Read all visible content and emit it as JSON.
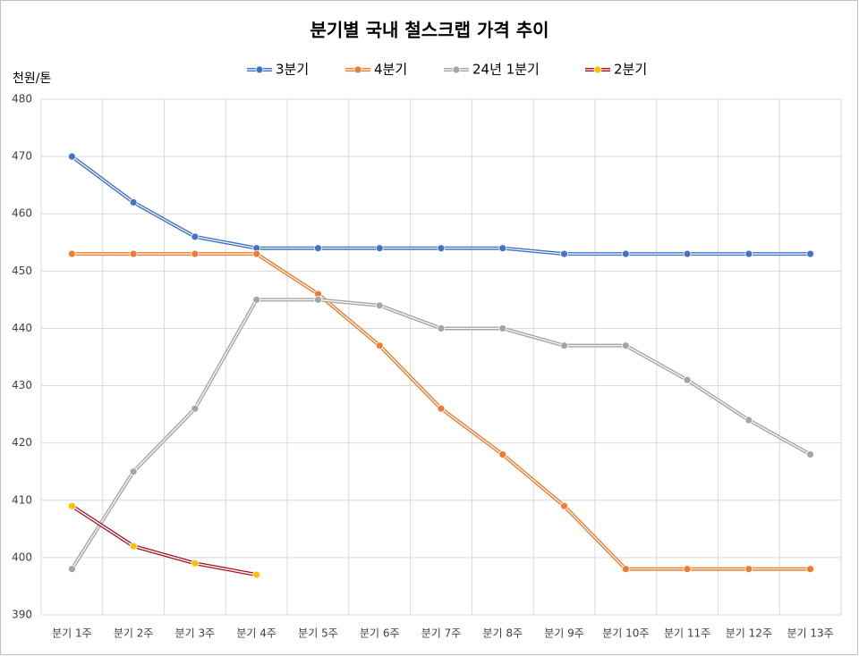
{
  "chart_data": {
    "type": "line",
    "title": "분기별 국내 철스크랩 가격 추이",
    "y_label": "천원/톤",
    "categories": [
      "분기 1주",
      "분기 2주",
      "분기 3주",
      "분기 4주",
      "분기 5주",
      "분기 6주",
      "분기 7주",
      "분기 8주",
      "분기 9주",
      "분기 10주",
      "분기 11주",
      "분기 12주",
      "분기 13주"
    ],
    "series": [
      {
        "name": "3분기",
        "color": "#4472c4",
        "marker_color": "#4472c4",
        "values": [
          470,
          462,
          456,
          454,
          454,
          454,
          454,
          454,
          453,
          453,
          453,
          453,
          453
        ]
      },
      {
        "name": "4분기",
        "color": "#ed7d31",
        "marker_color": "#ed7d31",
        "values": [
          453,
          453,
          453,
          453,
          446,
          437,
          426,
          418,
          409,
          398,
          398,
          398,
          398
        ]
      },
      {
        "name": "24년 1분기",
        "color": "#a5a5a5",
        "marker_color": "#a5a5a5",
        "values": [
          398,
          415,
          426,
          445,
          445,
          444,
          440,
          440,
          437,
          437,
          431,
          424,
          418
        ]
      },
      {
        "name": "2분기",
        "color": "#a50e1e",
        "marker_color": "#ffc000",
        "values": [
          409,
          402,
          399,
          397,
          null,
          null,
          null,
          null,
          null,
          null,
          null,
          null,
          null
        ]
      }
    ],
    "ylim": [
      390,
      480
    ],
    "yticks": [
      390,
      400,
      410,
      420,
      430,
      440,
      450,
      460,
      470,
      480
    ],
    "grid": true,
    "legend": "top"
  }
}
